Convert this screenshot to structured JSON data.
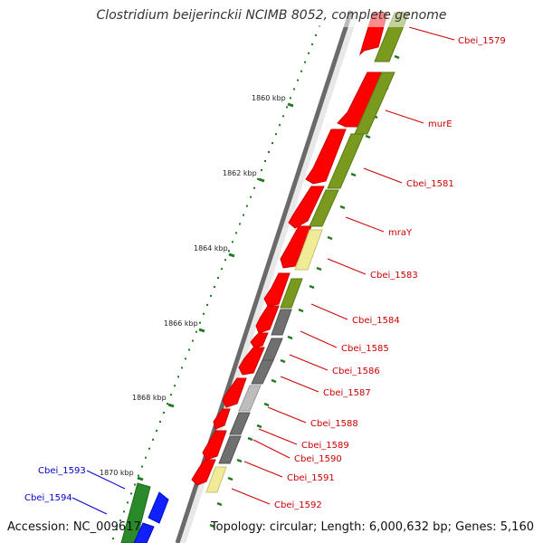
{
  "title": "Clostridium beijerinckii NCIMB 8052, complete genome",
  "footer": {
    "accession": "Accession: NC_009617",
    "topology": "Topology: circular; Length: 6,000,632 bp; Genes: 5,160"
  },
  "colors": {
    "forward_label": "#cc0000",
    "reverse_label": "#0000cc",
    "red": "#ff0000",
    "olive": "#7a9a1f",
    "yellow": "#f0eb96",
    "dark_gray": "#707070",
    "light_gray": "#bdbdbd",
    "green": "#2a8a2a",
    "blue": "#1020ff",
    "tick": "#1e7a1e"
  },
  "kbp_labels": [
    "1860 kbp",
    "1862 kbp",
    "1864 kbp",
    "1866 kbp",
    "1868 kbp",
    "1870 kbp"
  ],
  "gene_labels": [
    {
      "text": "Cbei_1579",
      "side": "forward"
    },
    {
      "text": "murE",
      "side": "forward"
    },
    {
      "text": "Cbei_1581",
      "side": "forward"
    },
    {
      "text": "mraY",
      "side": "forward"
    },
    {
      "text": "Cbei_1583",
      "side": "forward"
    },
    {
      "text": "Cbei_1584",
      "side": "forward"
    },
    {
      "text": "Cbei_1585",
      "side": "forward"
    },
    {
      "text": "Cbei_1586",
      "side": "forward"
    },
    {
      "text": "Cbei_1587",
      "side": "forward"
    },
    {
      "text": "Cbei_1588",
      "side": "forward"
    },
    {
      "text": "Cbei_1589",
      "side": "forward"
    },
    {
      "text": "Cbei_1590",
      "side": "forward"
    },
    {
      "text": "Cbei_1591",
      "side": "forward"
    },
    {
      "text": "Cbei_1592",
      "side": "forward"
    },
    {
      "text": "Cbei_1593",
      "side": "reverse"
    },
    {
      "text": "Cbei_1594",
      "side": "reverse"
    }
  ]
}
